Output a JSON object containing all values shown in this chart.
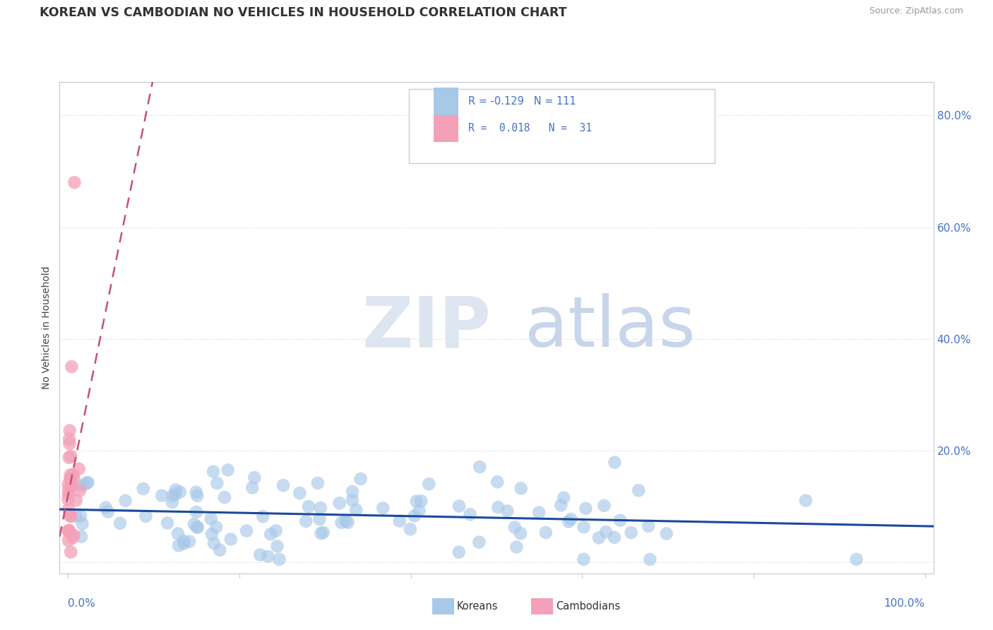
{
  "title": "KOREAN VS CAMBODIAN NO VEHICLES IN HOUSEHOLD CORRELATION CHART",
  "source": "Source: ZipAtlas.com",
  "ylabel": "No Vehicles in Household",
  "korean_R": -0.129,
  "korean_N": 111,
  "cambodian_R": 0.018,
  "cambodian_N": 31,
  "korean_color": "#a8c8e8",
  "cambodian_color": "#f4a0b8",
  "korean_line_color": "#1a4a9a",
  "cambodian_line_color": "#c85070",
  "ytick_color": "#4472c4",
  "xtick_color": "#4472c4",
  "grid_color": "#d0d8e8",
  "spine_color": "#c0c8d8",
  "title_color": "#333333",
  "source_color": "#999999",
  "ylabel_color": "#444444",
  "legend_text_color": "#4472c4",
  "watermark_zip_color": "#dde5f0",
  "watermark_atlas_color": "#c8d5ea"
}
